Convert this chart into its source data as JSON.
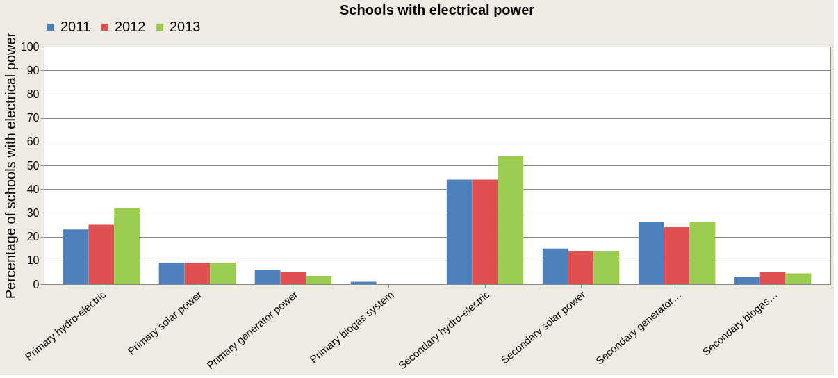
{
  "chart_data": {
    "type": "bar",
    "title": "Schools with electrical power",
    "ylabel": "Percentage of schools with electrical power",
    "categories": [
      "Primary hydro-electric",
      "Primary solar power",
      "Primary generator power",
      "Primary biogas system",
      "Secondary hydro-electric",
      "Secondary solar power",
      "Secondary generator…",
      "Secondary biogas…"
    ],
    "series": [
      {
        "name": "2011",
        "color": "#4f81bd",
        "values": [
          23,
          9,
          6,
          1,
          44,
          15,
          26,
          3
        ]
      },
      {
        "name": "2012",
        "color": "#e05050",
        "values": [
          25,
          9,
          5,
          0,
          44,
          14,
          24,
          5
        ]
      },
      {
        "name": "2013",
        "color": "#9bcc50",
        "values": [
          32,
          9,
          3.5,
          0,
          54,
          14,
          26,
          4.5
        ]
      }
    ],
    "ylim": [
      0,
      100
    ],
    "yticks": [
      0,
      10,
      20,
      30,
      40,
      50,
      60,
      70,
      80,
      90,
      100
    ],
    "grid": "y",
    "legend": "top"
  }
}
